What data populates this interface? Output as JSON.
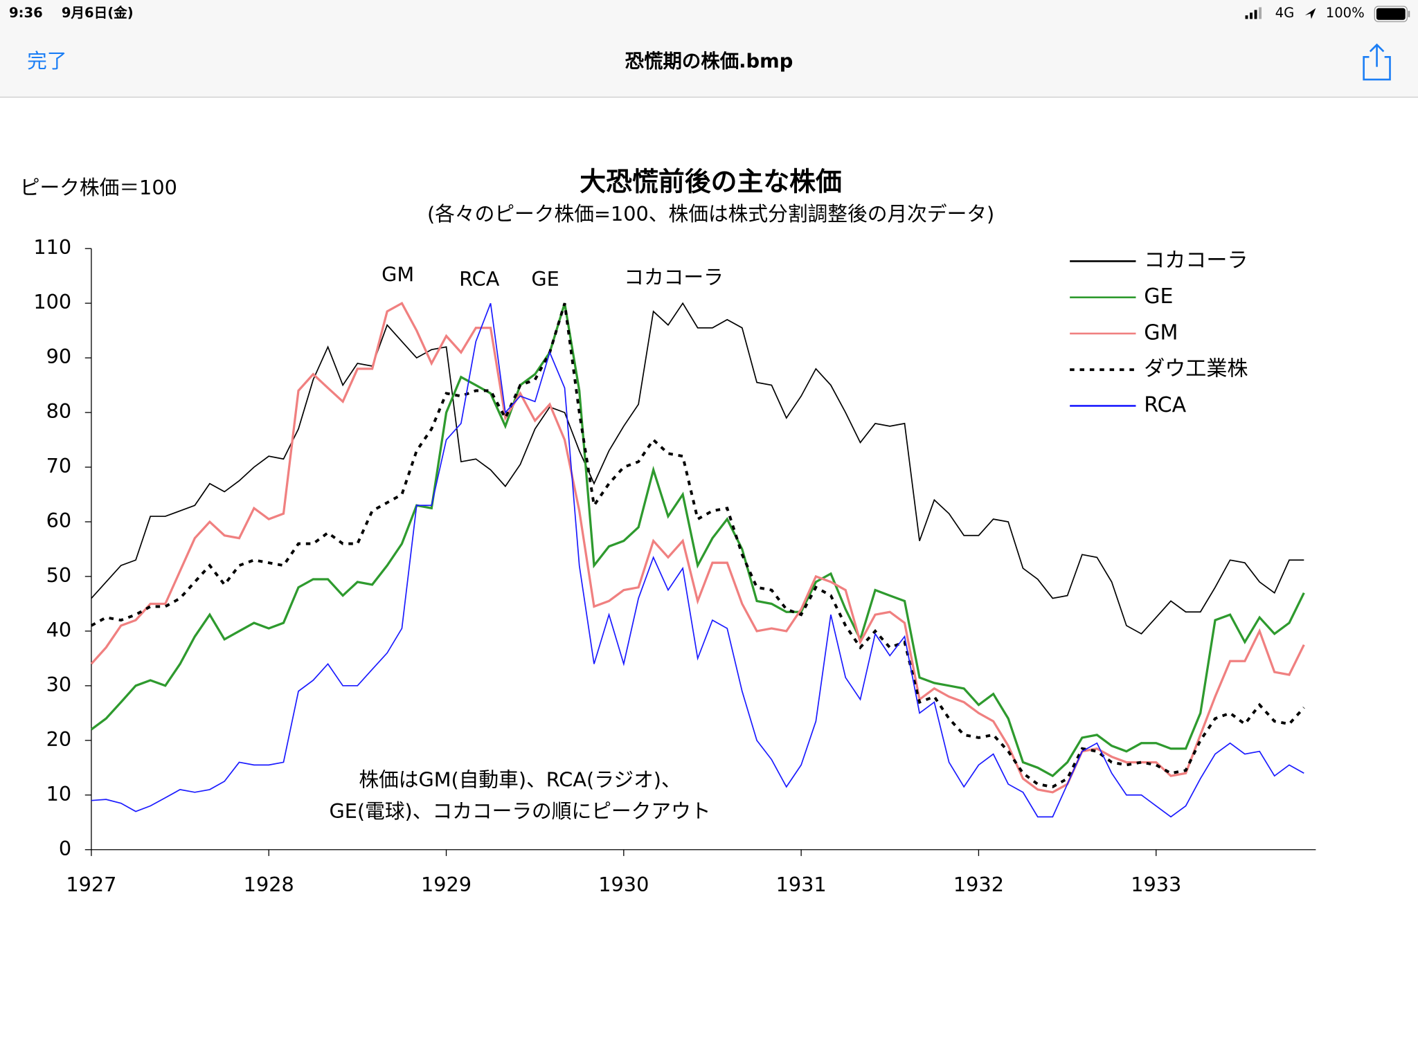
{
  "status_bar": {
    "time": "9:36",
    "date": "9月6日(金)",
    "network": "4G",
    "battery": "100%"
  },
  "nav_bar": {
    "done": "完了",
    "title": "恐慌期の株価.bmp"
  },
  "chart_data": {
    "type": "line",
    "title": "大恐慌前後の主な株価",
    "subtitle": "(各々のピーク株価=100、株価は株式分割調整後の月次データ)",
    "y_label": "ピーク株価＝100",
    "annotations": [
      "GM",
      "RCA",
      "GE",
      "コカコーラ",
      "株価はGM(自動車)、RCA(ラジオ)、",
      "GE(電球)、コカコーラの順にピークアウト"
    ],
    "legend": "upper right",
    "xlim": [
      1927,
      1933.9
    ],
    "xticks": [
      1927,
      1928,
      1929,
      1930,
      1931,
      1932,
      1933
    ],
    "ylim": [
      0,
      110
    ],
    "yticks": [
      0,
      10,
      20,
      30,
      40,
      50,
      60,
      70,
      80,
      90,
      100,
      110
    ],
    "x": [
      1927,
      1927.083,
      1927.167,
      1927.25,
      1927.333,
      1927.417,
      1927.5,
      1927.583,
      1927.667,
      1927.75,
      1927.833,
      1927.917,
      1928,
      1928.083,
      1928.167,
      1928.25,
      1928.333,
      1928.417,
      1928.5,
      1928.583,
      1928.667,
      1928.75,
      1928.833,
      1928.917,
      1929,
      1929.083,
      1929.167,
      1929.25,
      1929.333,
      1929.417,
      1929.5,
      1929.583,
      1929.667,
      1929.75,
      1929.833,
      1929.917,
      1930,
      1930.083,
      1930.167,
      1930.25,
      1930.333,
      1930.417,
      1930.5,
      1930.583,
      1930.667,
      1930.75,
      1930.833,
      1930.917,
      1931,
      1931.083,
      1931.167,
      1931.25,
      1931.333,
      1931.417,
      1931.5,
      1931.583,
      1931.667,
      1931.75,
      1931.833,
      1931.917,
      1932,
      1932.083,
      1932.167,
      1932.25,
      1932.333,
      1932.417,
      1932.5,
      1932.583,
      1932.667,
      1932.75,
      1932.833,
      1932.917,
      1933,
      1933.083,
      1933.167,
      1933.25,
      1933.333,
      1933.417,
      1933.5,
      1933.583,
      1933.667,
      1933.75,
      1933.833
    ],
    "series": [
      {
        "name": "コカコーラ",
        "color": "#000000",
        "linestyle": "solid",
        "values": [
          46,
          49,
          52,
          53,
          61,
          61,
          62,
          63,
          67,
          65.5,
          67.5,
          70,
          72,
          71.5,
          77,
          86,
          92,
          85,
          89,
          88.5,
          96,
          93,
          90,
          91.5,
          92,
          71,
          71.5,
          69.5,
          66.5,
          70.5,
          77,
          81,
          80,
          73,
          67,
          73,
          77.5,
          81.5,
          98.5,
          96,
          100,
          95.5,
          95.5,
          97,
          95.5,
          85.5,
          85,
          79,
          83,
          88,
          85,
          80,
          74.5,
          78,
          77.5,
          78,
          56.5,
          64,
          61.5,
          57.5,
          57.5,
          60.5,
          60,
          51.5,
          49.5,
          46,
          46.5,
          54,
          53.5,
          49,
          41,
          39.5,
          42.5,
          45.5,
          43.5,
          43.5,
          48,
          53,
          52.5,
          49,
          47,
          53,
          53
        ]
      },
      {
        "name": "GE",
        "color": "#2e9a2e",
        "linestyle": "solid",
        "values": [
          22,
          24,
          27,
          30,
          31,
          30,
          34,
          39,
          43,
          38.5,
          40,
          41.5,
          40.5,
          41.5,
          48,
          49.5,
          49.5,
          46.5,
          49,
          48.5,
          52,
          56,
          63,
          62.5,
          80,
          86.5,
          85,
          83.5,
          77.5,
          85,
          87,
          91,
          100,
          84,
          52,
          55.5,
          56.5,
          59,
          69.5,
          61,
          65,
          52,
          57,
          60.5,
          55,
          45.5,
          45,
          43.5,
          43.5,
          49,
          50.5,
          44,
          38.5,
          47.5,
          46.5,
          45.5,
          31.5,
          30.5,
          30,
          29.5,
          26.5,
          28.5,
          24,
          16,
          15,
          13.5,
          16,
          20.5,
          21,
          19,
          18,
          19.5,
          19.5,
          18.5,
          18.5,
          25,
          42,
          43,
          38,
          42.5,
          39.5,
          41.5,
          47
        ]
      },
      {
        "name": "GM",
        "color": "#f08080",
        "linestyle": "solid",
        "values": [
          34,
          37,
          41,
          42,
          45,
          45,
          51,
          57,
          60,
          57.5,
          57,
          62.5,
          60.5,
          61.5,
          84,
          87,
          84.5,
          82,
          88,
          88,
          98.5,
          100,
          95,
          89,
          94,
          91,
          95.5,
          95.5,
          79,
          83.5,
          78.5,
          81.5,
          75,
          62,
          44.5,
          45.5,
          47.5,
          48,
          56.5,
          53.5,
          56.5,
          45.5,
          52.5,
          52.5,
          45,
          40,
          40.5,
          40,
          44,
          50,
          49,
          47.5,
          38,
          43,
          43.5,
          41.5,
          27.5,
          29.5,
          28,
          27,
          25,
          23.5,
          19,
          13,
          11,
          10.5,
          12,
          18,
          18.5,
          17,
          16,
          16,
          16,
          13.5,
          14,
          21,
          28,
          34.5,
          34.5,
          40,
          32.5,
          32,
          37.5
        ]
      },
      {
        "name": "ダウ工業株",
        "color": "#000000",
        "linestyle": "dotted",
        "values": [
          41,
          42.5,
          42,
          43,
          44.5,
          44.5,
          46,
          49,
          52,
          48.5,
          52,
          53,
          52.5,
          52,
          56,
          56,
          58,
          56,
          56,
          62,
          63.5,
          65,
          73,
          77,
          83.5,
          83,
          84,
          84,
          79,
          85,
          86,
          91,
          100,
          80,
          63,
          67,
          70,
          71,
          75,
          72.5,
          72,
          60.5,
          62,
          62.5,
          54,
          48,
          47.5,
          44,
          43,
          48,
          46.5,
          41,
          37,
          40,
          37,
          38,
          27,
          28,
          24,
          21,
          20.5,
          21,
          18,
          14,
          12,
          11.5,
          13,
          18.5,
          18,
          16,
          15.5,
          16,
          15.5,
          14,
          14.5,
          20,
          24,
          25,
          23,
          26.5,
          23.5,
          23,
          26
        ]
      },
      {
        "name": "RCA",
        "color": "#1a1aff",
        "linestyle": "solid",
        "values": [
          9,
          9.2,
          8.5,
          7,
          8,
          9.5,
          11,
          10.5,
          11,
          12.5,
          16,
          15.5,
          15.5,
          16,
          29,
          31,
          34,
          30,
          30,
          33,
          36,
          40.5,
          63,
          63,
          75,
          78,
          93,
          100,
          80,
          83,
          82,
          91,
          84.5,
          52,
          34,
          43,
          34,
          46,
          53.5,
          47.5,
          51.5,
          35,
          42,
          40.5,
          29,
          20,
          16.5,
          11.5,
          15.5,
          23.5,
          43,
          31.5,
          27.5,
          39.5,
          35.5,
          39,
          25,
          27,
          16,
          11.5,
          15.5,
          17.5,
          12,
          10.5,
          6,
          6,
          12,
          18,
          19.5,
          14,
          10,
          10,
          8,
          6,
          8,
          13,
          17.5,
          19.5,
          17.5,
          18,
          13.5,
          15.5,
          14
        ]
      }
    ]
  }
}
